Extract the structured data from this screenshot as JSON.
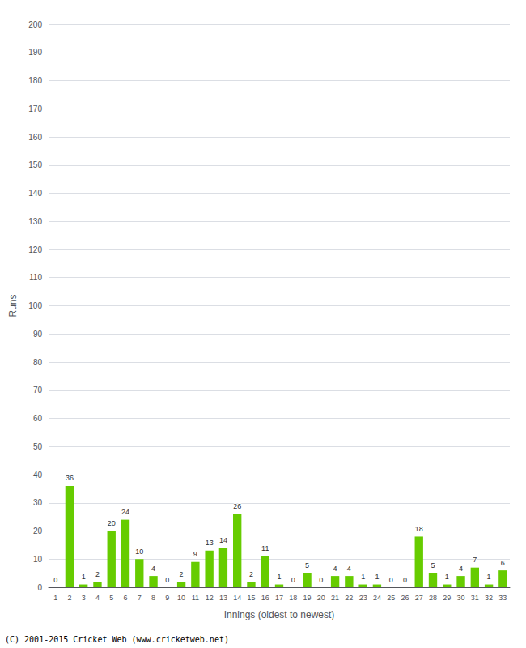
{
  "chart_data": {
    "type": "bar",
    "xlabel": "Innings (oldest to newest)",
    "ylabel": "Runs",
    "categories": [
      "1",
      "2",
      "3",
      "4",
      "5",
      "6",
      "7",
      "8",
      "9",
      "10",
      "11",
      "12",
      "13",
      "14",
      "15",
      "16",
      "17",
      "18",
      "19",
      "20",
      "21",
      "22",
      "23",
      "24",
      "25",
      "26",
      "27",
      "28",
      "29",
      "30",
      "31",
      "32",
      "33"
    ],
    "values": [
      0,
      36,
      1,
      2,
      20,
      24,
      10,
      4,
      0,
      2,
      9,
      13,
      14,
      26,
      2,
      11,
      1,
      0,
      5,
      0,
      4,
      4,
      1,
      1,
      0,
      0,
      18,
      5,
      1,
      4,
      7,
      1,
      6
    ],
    "color": "#66cc00",
    "ylim": [
      0,
      200
    ],
    "yticks": [
      0,
      10,
      20,
      30,
      40,
      50,
      60,
      70,
      80,
      90,
      100,
      110,
      120,
      130,
      140,
      150,
      160,
      170,
      180,
      190,
      200
    ],
    "grid": true,
    "data_labels": true,
    "footer": "(C) 2001-2015 Cricket Web (www.cricketweb.net)"
  }
}
